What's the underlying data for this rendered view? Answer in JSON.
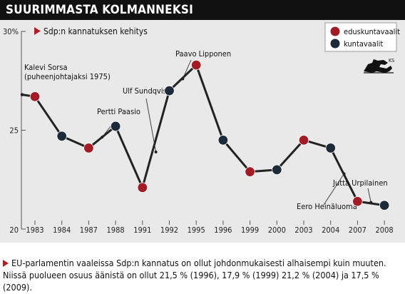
{
  "header": {
    "title": "SUURIMMASTA KOLMANNEKSI"
  },
  "chart_data": {
    "type": "line",
    "subtitle": "Sdp:n kannatuksen kehitys",
    "y_unit_label": "30%",
    "ylim": [
      20,
      30
    ],
    "yticks": [
      {
        "value": 20,
        "label": "20"
      },
      {
        "value": 25,
        "label": "25"
      },
      {
        "value": 30,
        "label": "30%"
      }
    ],
    "categories": [
      "1983",
      "1984",
      "1987",
      "1988",
      "1991",
      "1992",
      "1995",
      "1996",
      "1999",
      "2000",
      "2003",
      "2004",
      "2007",
      "2008"
    ],
    "values": [
      26.7,
      24.7,
      24.1,
      25.2,
      22.1,
      27.0,
      28.3,
      24.5,
      22.9,
      23.0,
      24.5,
      24.1,
      21.4,
      21.2
    ],
    "election_type": [
      "eduskuntavaalit",
      "kuntavaalit",
      "eduskuntavaalit",
      "kuntavaalit",
      "eduskuntavaalit",
      "kuntavaalit",
      "eduskuntavaalit",
      "kuntavaalit",
      "eduskuntavaalit",
      "kuntavaalit",
      "eduskuntavaalit",
      "kuntavaalit",
      "eduskuntavaalit",
      "kuntavaalit"
    ],
    "lead_in": {
      "x": "1982",
      "value": 26.8
    },
    "legend": {
      "position": "top-right",
      "items": [
        {
          "key": "eduskuntavaalit",
          "label": "eduskuntavaalit",
          "color": "#a31c25"
        },
        {
          "key": "kuntavaalit",
          "label": "kuntavaalit",
          "color": "#1c2a3a"
        }
      ]
    },
    "annotations": [
      {
        "lines": [
          "Kalevi Sorsa",
          "(puheenjohtajaksi 1975)"
        ],
        "at": 26.8,
        "between": [
          "1982",
          "1982"
        ]
      },
      {
        "lines": [
          "Pertti Paasio"
        ],
        "at": 24.65,
        "between": [
          "1987",
          "1988"
        ]
      },
      {
        "lines": [
          "Ulf Sundqvist"
        ],
        "at": 23.9,
        "between": [
          "1991",
          "1992"
        ]
      },
      {
        "lines": [
          "Paavo Lipponen"
        ],
        "at": 27.6,
        "between": [
          "1992",
          "1995"
        ]
      },
      {
        "lines": [
          "Eero Heinäluoma"
        ],
        "at": 22.8,
        "between": [
          "2004",
          "2007"
        ]
      },
      {
        "lines": [
          "Jutta Urpilainen"
        ],
        "at": 21.35,
        "between": [
          "2007",
          "2008"
        ]
      }
    ],
    "grid": false,
    "colors": {
      "edus": "#a31c25",
      "kunta": "#1c2a3a",
      "line": "#222222",
      "accent": "#b21e28"
    }
  },
  "logo": {
    "text": "KS"
  },
  "footer": {
    "line1": "EU-parlamentin vaaleissa Sdp:n kannatus on ollut johdonmukaisesti alhaisempi kuin muuten.",
    "line2": "Niissä puolueen osuus äänistä on ollut 21,5 % (1996), 17,9 % (1999) 21,2 % (2004) ja 17,5 % (2009)."
  }
}
